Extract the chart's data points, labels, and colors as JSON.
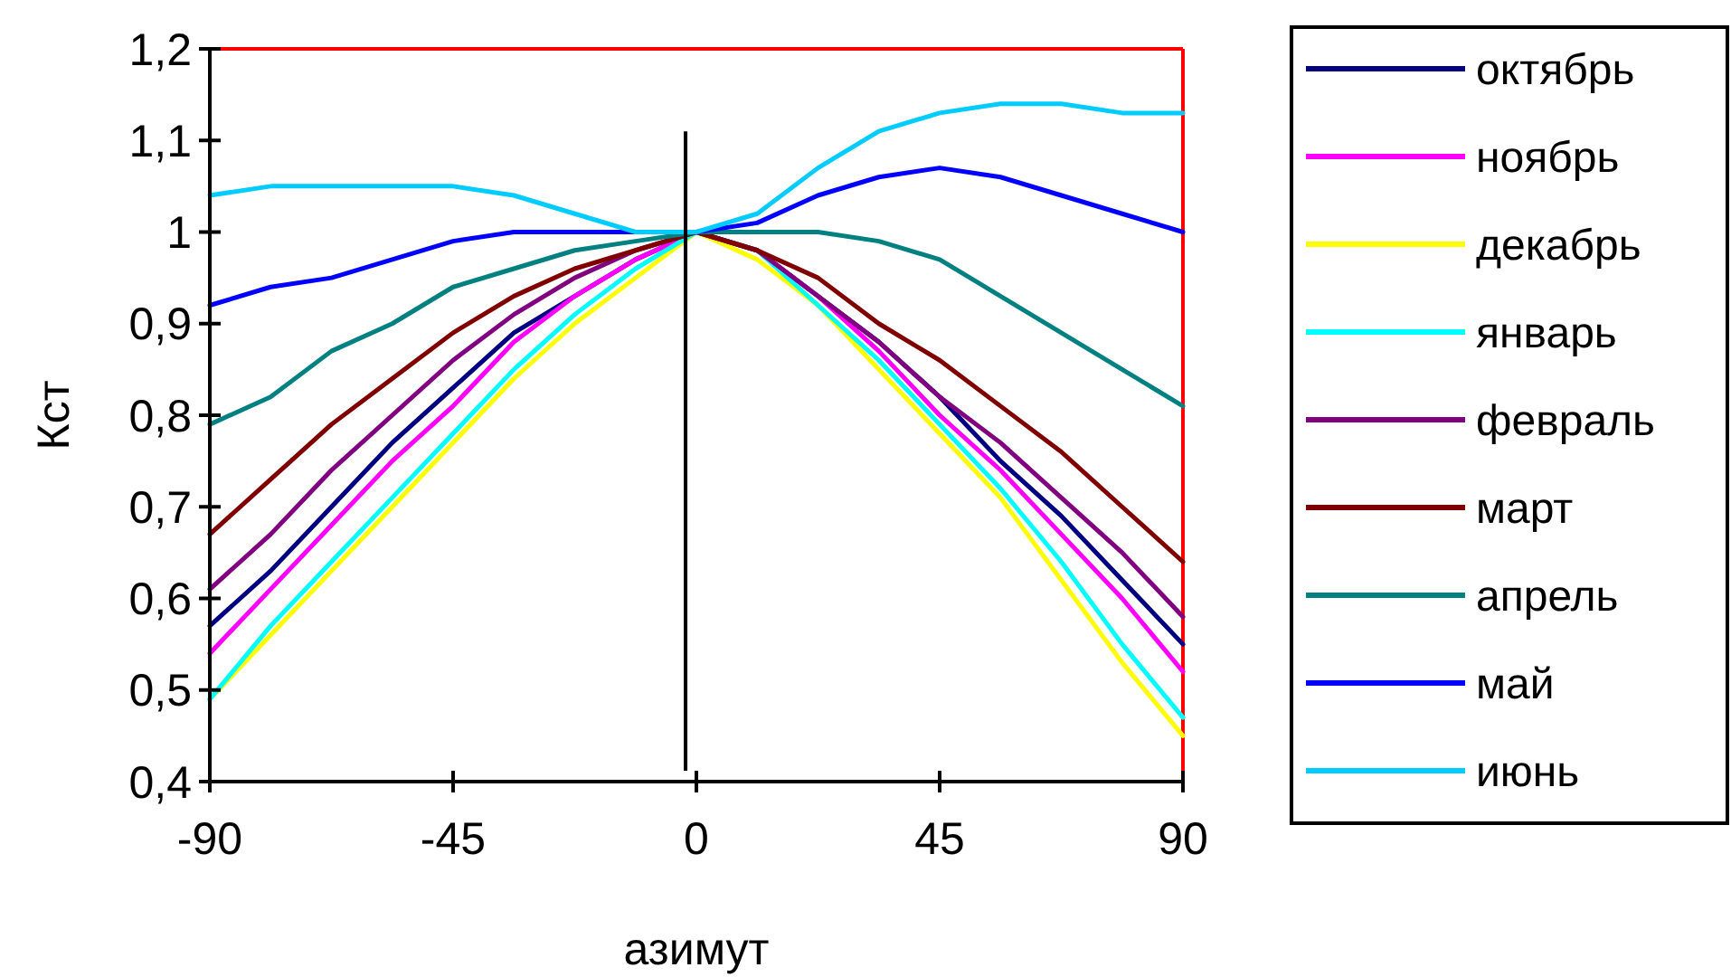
{
  "chart_data": {
    "type": "line",
    "xlabel": "азимут",
    "ylabel": "Кст",
    "x": [
      -90,
      -78.75,
      -67.5,
      -56.25,
      -45,
      -33.75,
      -22.5,
      -11.25,
      0,
      11.25,
      22.5,
      33.75,
      45,
      56.25,
      67.5,
      78.75,
      90
    ],
    "xlim": [
      -90,
      90
    ],
    "xticks": [
      -90,
      -45,
      0,
      45,
      90
    ],
    "ylim": [
      0.4,
      1.2
    ],
    "yticks": [
      {
        "value": 0.4,
        "label": "0,4"
      },
      {
        "value": 0.5,
        "label": "0,5"
      },
      {
        "value": 0.6,
        "label": "0,6"
      },
      {
        "value": 0.7,
        "label": "0,7"
      },
      {
        "value": 0.8,
        "label": "0,8"
      },
      {
        "value": 0.9,
        "label": "0,9"
      },
      1,
      {
        "value": 1.1,
        "label": "1,1"
      },
      {
        "value": 1.2,
        "label": "1,2"
      }
    ],
    "grid": false,
    "legend": "right",
    "marker": "none",
    "line_style": "solid",
    "ref_lines": [
      {
        "axis": "x",
        "value": -2,
        "color": "#000000"
      }
    ],
    "series": [
      {
        "name": "октябрь",
        "color": "#000080",
        "values": [
          0.57,
          0.63,
          0.7,
          0.77,
          0.83,
          0.89,
          0.93,
          0.97,
          1.0,
          0.98,
          0.93,
          0.88,
          0.82,
          0.75,
          0.69,
          0.62,
          0.55
        ]
      },
      {
        "name": "ноябрь",
        "color": "#ff00ff",
        "values": [
          0.54,
          0.61,
          0.68,
          0.75,
          0.81,
          0.88,
          0.93,
          0.97,
          1.0,
          0.98,
          0.93,
          0.87,
          0.8,
          0.74,
          0.67,
          0.6,
          0.52
        ]
      },
      {
        "name": "декабрь",
        "color": "#ffff00",
        "values": [
          0.49,
          0.56,
          0.63,
          0.7,
          0.77,
          0.84,
          0.9,
          0.95,
          1.0,
          0.97,
          0.92,
          0.85,
          0.78,
          0.71,
          0.62,
          0.53,
          0.45
        ]
      },
      {
        "name": "январь",
        "color": "#00ffff",
        "values": [
          0.49,
          0.57,
          0.64,
          0.71,
          0.78,
          0.85,
          0.91,
          0.96,
          1.0,
          0.98,
          0.92,
          0.86,
          0.79,
          0.72,
          0.64,
          0.55,
          0.47
        ]
      },
      {
        "name": "февраль",
        "color": "#800080",
        "values": [
          0.61,
          0.67,
          0.74,
          0.8,
          0.86,
          0.91,
          0.95,
          0.98,
          1.0,
          0.98,
          0.93,
          0.88,
          0.82,
          0.77,
          0.71,
          0.65,
          0.58
        ]
      },
      {
        "name": "март",
        "color": "#800000",
        "values": [
          0.67,
          0.73,
          0.79,
          0.84,
          0.89,
          0.93,
          0.96,
          0.98,
          1.0,
          0.98,
          0.95,
          0.9,
          0.86,
          0.81,
          0.76,
          0.7,
          0.64
        ]
      },
      {
        "name": "апрель",
        "color": "#008080",
        "values": [
          0.79,
          0.82,
          0.87,
          0.9,
          0.94,
          0.96,
          0.98,
          0.99,
          1.0,
          1.0,
          1.0,
          0.99,
          0.97,
          0.93,
          0.89,
          0.85,
          0.81
        ]
      },
      {
        "name": "май",
        "color": "#0000ff",
        "values": [
          0.92,
          0.94,
          0.95,
          0.97,
          0.99,
          1.0,
          1.0,
          1.0,
          1.0,
          1.01,
          1.04,
          1.06,
          1.07,
          1.06,
          1.04,
          1.02,
          1.0
        ]
      },
      {
        "name": "июнь",
        "color": "#00ccff",
        "values": [
          1.04,
          1.05,
          1.05,
          1.05,
          1.05,
          1.04,
          1.02,
          1.0,
          1.0,
          1.02,
          1.07,
          1.11,
          1.13,
          1.14,
          1.14,
          1.13,
          1.13
        ]
      }
    ]
  }
}
